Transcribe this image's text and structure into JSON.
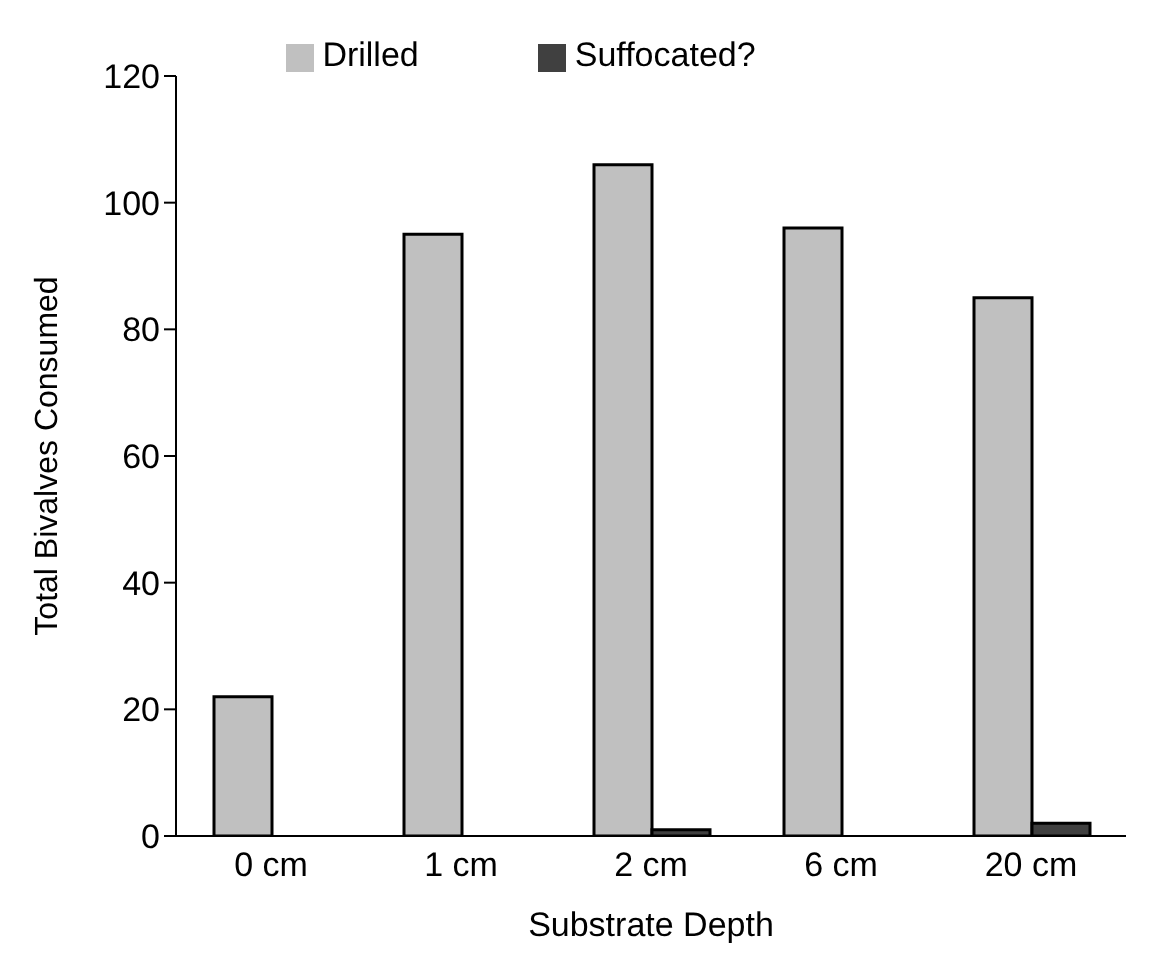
{
  "chart_data": {
    "type": "bar",
    "xlabel": "Substrate Depth",
    "ylabel": "Total Bivalves Consumed",
    "categories": [
      "0 cm",
      "1 cm",
      "2 cm",
      "6 cm",
      "20 cm"
    ],
    "series": [
      {
        "name": "Drilled",
        "color": "#c0c0c0",
        "values": [
          22,
          95,
          106,
          96,
          85
        ]
      },
      {
        "name": "Suffocated?",
        "color": "#404040",
        "values": [
          0,
          0,
          1,
          0,
          2
        ]
      }
    ],
    "ylim": [
      0,
      120
    ],
    "yticks": [
      0,
      20,
      40,
      60,
      80,
      100,
      120
    ],
    "grid": false,
    "legend": "top"
  }
}
